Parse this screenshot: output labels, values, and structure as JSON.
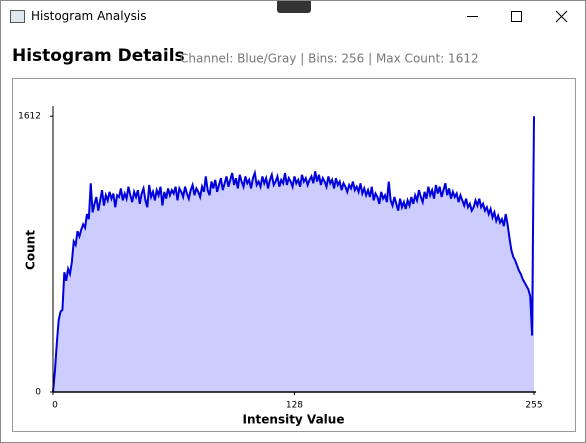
{
  "window": {
    "title": "Histogram Analysis"
  },
  "chart_data": {
    "type": "area",
    "title": "Histogram Details",
    "subtitle": "Channel: Blue/Gray | Bins: 256 | Max Count: 1612",
    "x_label": "Intensity Value",
    "y_label": "Count",
    "xlim": [
      0,
      255
    ],
    "xticks": [
      0,
      128,
      255
    ],
    "ylim": [
      0,
      1660
    ],
    "yticks": [
      0,
      1612
    ],
    "color": "#0000dd",
    "fill": "#ccccff",
    "values": [
      0,
      120,
      280,
      420,
      470,
      480,
      700,
      650,
      720,
      690,
      760,
      880,
      860,
      940,
      910,
      950,
      980,
      960,
      1040,
      1010,
      1220,
      1050,
      1100,
      1140,
      1060,
      1120,
      1180,
      1090,
      1150,
      1120,
      1170,
      1130,
      1160,
      1080,
      1150,
      1140,
      1190,
      1120,
      1160,
      1130,
      1200,
      1150,
      1110,
      1170,
      1140,
      1180,
      1100,
      1160,
      1190,
      1120,
      1080,
      1210,
      1140,
      1170,
      1120,
      1180,
      1150,
      1200,
      1090,
      1170,
      1130,
      1190,
      1150,
      1180,
      1160,
      1200,
      1120,
      1190,
      1170,
      1140,
      1200,
      1160,
      1130,
      1180,
      1210,
      1150,
      1190,
      1170,
      1140,
      1200,
      1170,
      1260,
      1180,
      1150,
      1230,
      1190,
      1240,
      1170,
      1210,
      1250,
      1180,
      1220,
      1260,
      1200,
      1240,
      1280,
      1210,
      1250,
      1190,
      1270,
      1230,
      1200,
      1260,
      1220,
      1240,
      1190,
      1250,
      1280,
      1210,
      1230,
      1200,
      1260,
      1220,
      1250,
      1190,
      1240,
      1270,
      1210,
      1230,
      1260,
      1200,
      1240,
      1220,
      1280,
      1210,
      1250,
      1230,
      1200,
      1260,
      1220,
      1240,
      1200,
      1270,
      1230,
      1250,
      1210,
      1240,
      1260,
      1220,
      1290,
      1230,
      1270,
      1210,
      1250,
      1230,
      1200,
      1260,
      1220,
      1240,
      1190,
      1250,
      1210,
      1230,
      1180,
      1220,
      1200,
      1170,
      1210,
      1190,
      1230,
      1180,
      1200,
      1170,
      1220,
      1160,
      1190,
      1150,
      1180,
      1140,
      1200,
      1120,
      1160,
      1140,
      1100,
      1170,
      1130,
      1150,
      1110,
      1230,
      1120,
      1090,
      1140,
      1100,
      1060,
      1130,
      1080,
      1110,
      1070,
      1120,
      1090,
      1140,
      1100,
      1150,
      1120,
      1180,
      1140,
      1110,
      1170,
      1130,
      1200,
      1150,
      1180,
      1130,
      1210,
      1160,
      1200,
      1140,
      1180,
      1220,
      1150,
      1190,
      1130,
      1170,
      1140,
      1160,
      1110,
      1150,
      1120,
      1090,
      1130,
      1080,
      1100,
      1060,
      1080,
      1120,
      1090,
      1130,
      1080,
      1100,
      1060,
      1080,
      1040,
      1070,
      1020,
      1050,
      1000,
      1030,
      990,
      1010,
      970,
      1040,
      980,
      900,
      830,
      790,
      770,
      740,
      710,
      690,
      660,
      640,
      620,
      600,
      560,
      330,
      1612
    ]
  }
}
